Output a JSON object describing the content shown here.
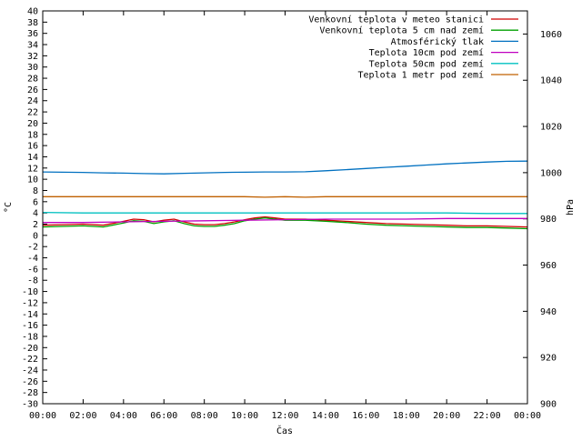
{
  "chart_data": {
    "type": "line",
    "xlabel": "Čas",
    "ylabel_left": "°C",
    "ylabel_right": "hPa",
    "xlim": [
      0,
      24
    ],
    "ylim_left": [
      -30,
      40
    ],
    "ylim_right": [
      900,
      1070
    ],
    "x_ticks": [
      0,
      2,
      4,
      6,
      8,
      10,
      12,
      14,
      16,
      18,
      20,
      22,
      24
    ],
    "x_tick_labels": [
      "00:00",
      "02:00",
      "04:00",
      "06:00",
      "08:00",
      "10:00",
      "12:00",
      "14:00",
      "16:00",
      "18:00",
      "20:00",
      "22:00",
      "00:00"
    ],
    "y_left_ticks": [
      40,
      38,
      36,
      34,
      32,
      30,
      28,
      26,
      24,
      22,
      20,
      18,
      16,
      14,
      12,
      10,
      8,
      6,
      4,
      2,
      0,
      -2,
      -4,
      -6,
      -8,
      -10,
      -12,
      -14,
      -16,
      -18,
      -20,
      -22,
      -24,
      -26,
      -28,
      -30
    ],
    "y_right_ticks": [
      1060,
      1040,
      1020,
      1000,
      980,
      960,
      940,
      920,
      900
    ],
    "grid": false,
    "legend_position": "top-right",
    "series": [
      {
        "name": "Venkovní teplota v meteo stanici",
        "color": "#d00000",
        "axis": "left",
        "x": [
          0,
          1,
          2,
          3,
          4,
          4.5,
          5,
          5.5,
          6,
          6.5,
          7,
          7.5,
          8,
          8.5,
          9,
          9.5,
          10,
          10.5,
          11,
          11.5,
          12,
          13,
          14,
          15,
          16,
          17,
          18,
          19,
          20,
          21,
          22,
          23,
          24
        ],
        "y": [
          1.8,
          1.9,
          2.0,
          1.8,
          2.5,
          2.9,
          2.8,
          2.4,
          2.7,
          2.9,
          2.4,
          2.0,
          1.9,
          1.9,
          2.1,
          2.4,
          2.8,
          3.1,
          3.3,
          3.1,
          2.9,
          2.9,
          2.7,
          2.5,
          2.3,
          2.1,
          2.0,
          1.9,
          1.8,
          1.7,
          1.7,
          1.6,
          1.5
        ]
      },
      {
        "name": "Venkovní teplota 5 cm nad zemí",
        "color": "#00a000",
        "axis": "left",
        "x": [
          0,
          1,
          2,
          3,
          4,
          4.5,
          5,
          5.5,
          6,
          6.5,
          7,
          7.5,
          8,
          8.5,
          9,
          9.5,
          10,
          10.5,
          11,
          11.5,
          12,
          13,
          14,
          15,
          16,
          17,
          18,
          19,
          20,
          21,
          22,
          23,
          24
        ],
        "y": [
          1.5,
          1.6,
          1.7,
          1.5,
          2.2,
          2.6,
          2.5,
          2.1,
          2.4,
          2.6,
          2.1,
          1.7,
          1.6,
          1.6,
          1.8,
          2.1,
          2.6,
          2.9,
          3.1,
          2.9,
          2.7,
          2.7,
          2.5,
          2.3,
          2.0,
          1.8,
          1.7,
          1.6,
          1.5,
          1.4,
          1.4,
          1.3,
          1.2
        ]
      },
      {
        "name": "Atmosférický tlak",
        "color": "#0070c0",
        "axis": "right",
        "x": [
          0,
          1,
          2,
          3,
          4,
          5,
          6,
          7,
          8,
          9,
          10,
          11,
          12,
          13,
          14,
          15,
          16,
          17,
          18,
          19,
          20,
          21,
          22,
          23,
          24
        ],
        "y": [
          1000.3,
          1000.2,
          1000.1,
          999.9,
          999.8,
          999.6,
          999.5,
          999.7,
          999.9,
          1000.1,
          1000.2,
          1000.3,
          1000.3,
          1000.4,
          1000.8,
          1001.3,
          1001.8,
          1002.3,
          1002.8,
          1003.3,
          1003.8,
          1004.2,
          1004.6,
          1004.9,
          1005.0
        ]
      },
      {
        "name": "Teplota 10cm pod zemí",
        "color": "#c000c0",
        "axis": "left",
        "x": [
          0,
          2,
          4,
          6,
          8,
          10,
          12,
          14,
          16,
          18,
          20,
          22,
          24
        ],
        "y": [
          2.3,
          2.3,
          2.4,
          2.5,
          2.6,
          2.7,
          2.8,
          2.9,
          2.9,
          2.9,
          3.0,
          3.0,
          3.0
        ]
      },
      {
        "name": "Teplota 50cm pod zemí",
        "color": "#00c0c0",
        "axis": "left",
        "x": [
          0,
          2,
          4,
          6,
          8,
          10,
          12,
          14,
          16,
          18,
          20,
          22,
          24
        ],
        "y": [
          4.1,
          4.0,
          4.0,
          4.0,
          4.0,
          4.0,
          4.0,
          4.0,
          4.0,
          4.0,
          4.0,
          3.9,
          3.9
        ]
      },
      {
        "name": "Teplota 1 metr pod zemí",
        "color": "#c06000",
        "axis": "left",
        "x": [
          0,
          2,
          4,
          6,
          8,
          10,
          11,
          12,
          13,
          14,
          16,
          18,
          20,
          22,
          24
        ],
        "y": [
          6.9,
          6.9,
          6.9,
          6.9,
          6.9,
          6.9,
          6.8,
          6.9,
          6.8,
          6.9,
          6.9,
          6.9,
          6.9,
          6.9,
          6.9
        ]
      }
    ]
  }
}
